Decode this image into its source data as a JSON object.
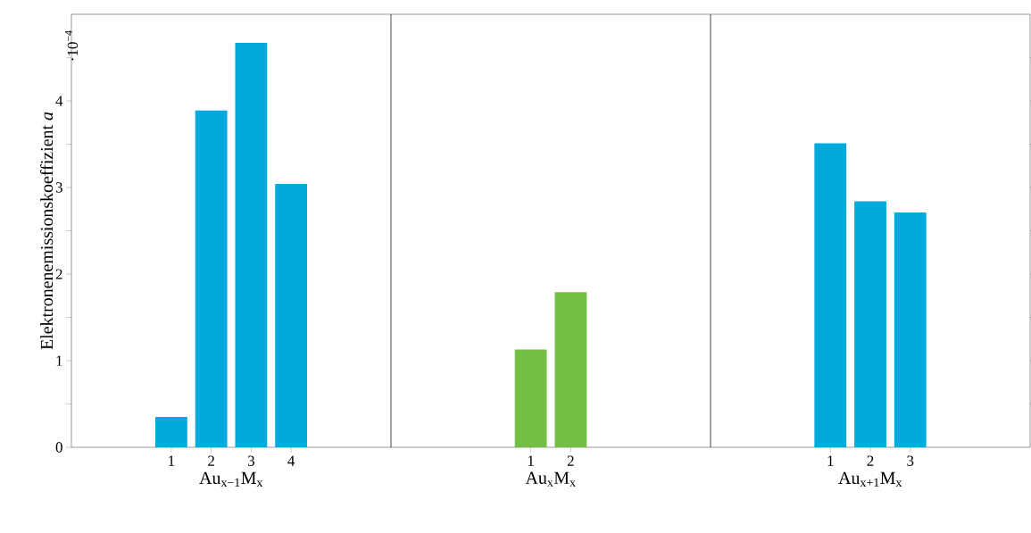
{
  "chart_data": [
    {
      "type": "bar",
      "x": [
        1,
        2,
        3,
        4
      ],
      "values": [
        0.35,
        3.89,
        4.67,
        3.04
      ],
      "color": "#00aadd",
      "xlim": [
        -1.5,
        6.5
      ],
      "xticks": [
        1,
        2,
        3,
        4
      ],
      "ylim": [
        0,
        5
      ],
      "yticks": [
        0,
        {
          "value": 0.5,
          "label": null
        },
        1,
        {
          "value": 1.5,
          "label": null
        },
        2,
        {
          "value": 2.5,
          "label": null
        },
        3,
        {
          "value": 3.5,
          "label": null
        },
        4,
        {
          "value": 4.5,
          "label": null
        }
      ],
      "xlabel": "Au$_{x−1}$M$_{x}$",
      "ylabel": "Elektronenemissionskoeffizient  *a*",
      "annotations": [
        "·10$^{−4}$"
      ]
    },
    {
      "type": "bar",
      "x": [
        1,
        2
      ],
      "values": [
        1.13,
        1.79
      ],
      "color": "#72bf44",
      "xlim": [
        -2.5,
        5.5
      ],
      "xticks": [
        1,
        2
      ],
      "ylim": [
        0,
        5
      ],
      "xlabel": "Au$_{x}$M$_{x}$",
      "tick_labels": "x"
    },
    {
      "type": "bar",
      "x": [
        1,
        2,
        3
      ],
      "values": [
        3.51,
        2.84,
        2.71
      ],
      "color": "#00aadd",
      "xlim": [
        -2,
        6
      ],
      "xticks": [
        1,
        2,
        3
      ],
      "ylim": [
        0,
        5
      ],
      "yticks": [
        {
          "value": 0.5,
          "label": null
        },
        {
          "value": 1,
          "label": null
        },
        {
          "value": 1.5,
          "label": null
        },
        {
          "value": 2,
          "label": null
        },
        {
          "value": 2.5,
          "label": null
        },
        {
          "value": 3,
          "label": null
        },
        {
          "value": 3.5,
          "label": null
        },
        {
          "value": 4,
          "label": null
        },
        {
          "value": 4.5,
          "label": null
        }
      ],
      "xlabel": "Au$_{x+1}$M$_{x}$",
      "tick_labels": "x"
    }
  ]
}
